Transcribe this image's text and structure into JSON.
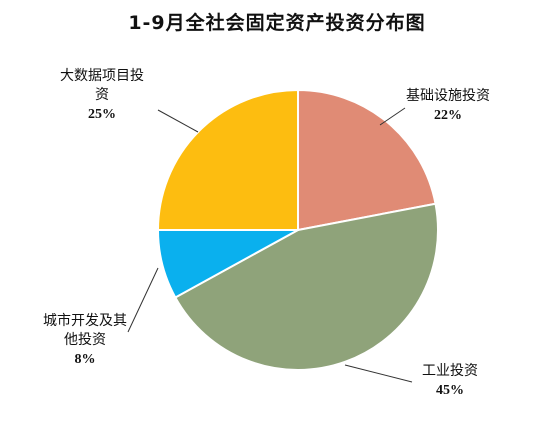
{
  "chart_data": {
    "type": "pie",
    "title": "1-9月全社会固定资产投资分布图",
    "slices": [
      {
        "label_lines": [
          "基础设施投资"
        ],
        "percent_text": "22%",
        "value": 22,
        "color": "#E08B75"
      },
      {
        "label_lines": [
          "工业投资"
        ],
        "percent_text": "45%",
        "value": 45,
        "color": "#8FA37A"
      },
      {
        "label_lines": [
          "城市开发及其",
          "他投资"
        ],
        "percent_text": "8%",
        "value": 8,
        "color": "#0AB0EE"
      },
      {
        "label_lines": [
          "大数据项目投",
          "资"
        ],
        "percent_text": "25%",
        "value": 25,
        "color": "#FDBD10"
      }
    ],
    "start_angle_deg": 0,
    "direction": "clockwise",
    "legend": "none",
    "data_labels": "outside-with-leader-lines"
  }
}
